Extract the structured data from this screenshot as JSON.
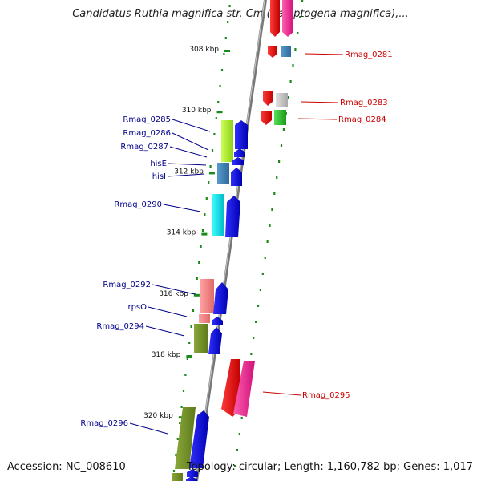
{
  "title": "Candidatus Ruthia magnifica str. Cm (Calyptogena magnifica),...",
  "footer": {
    "accession": "Accession: NC_008610",
    "topology": "Topology: circular; Length: 1,160,782 bp; Genes: 1,017"
  },
  "colors": {
    "backbone": "#888888",
    "dots": "#1a8a1a",
    "left_label": "#00008b",
    "right_label": "#cc0000"
  },
  "kbp_marks": [
    {
      "label": "308 kbp",
      "kbp": 308
    },
    {
      "label": "310 kbp",
      "kbp": 310
    },
    {
      "label": "312 kbp",
      "kbp": 312
    },
    {
      "label": "314 kbp",
      "kbp": 314
    },
    {
      "label": "316 kbp",
      "kbp": 316
    },
    {
      "label": "318 kbp",
      "kbp": 318
    },
    {
      "label": "320 kbp",
      "kbp": 320
    }
  ],
  "gene_labels_left": [
    {
      "label": "Rmag_0285"
    },
    {
      "label": "Rmag_0286"
    },
    {
      "label": "Rmag_0287"
    },
    {
      "label": "hisE"
    },
    {
      "label": "hisI"
    },
    {
      "label": "Rmag_0290"
    },
    {
      "label": "Rmag_0292"
    },
    {
      "label": "rpsO"
    },
    {
      "label": "Rmag_0294"
    },
    {
      "label": "Rmag_0296"
    }
  ],
  "gene_labels_right": [
    {
      "label": "Rmag_0281"
    },
    {
      "label": "Rmag_0283"
    },
    {
      "label": "Rmag_0284"
    },
    {
      "label": "Rmag_0295"
    }
  ]
}
